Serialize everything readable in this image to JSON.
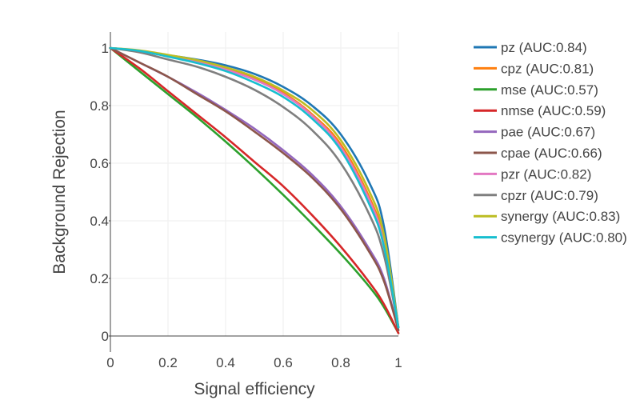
{
  "chart_data": {
    "type": "line",
    "xlabel": "Signal efficiency",
    "ylabel": "Background Rejection",
    "xlim": [
      0,
      1
    ],
    "ylim": [
      0,
      1
    ],
    "grid": true,
    "legend_position": "right",
    "xticks": [
      0,
      0.2,
      0.4,
      0.6,
      0.8,
      1
    ],
    "yticks": [
      0,
      0.2,
      0.4,
      0.6,
      0.8,
      1
    ],
    "xtick_labels": [
      "0",
      "0.2",
      "0.4",
      "0.6",
      "0.8",
      "1"
    ],
    "ytick_labels": [
      "0",
      "0.2",
      "0.4",
      "0.6",
      "0.8",
      "1"
    ],
    "x": [
      0,
      0.1,
      0.2,
      0.3,
      0.4,
      0.5,
      0.6,
      0.7,
      0.8,
      0.9,
      0.95,
      1
    ],
    "series": [
      {
        "name": "pz (AUC:0.84)",
        "color": "#1f77b4",
        "values": [
          1,
          0.99,
          0.975,
          0.96,
          0.94,
          0.91,
          0.865,
          0.8,
          0.7,
          0.53,
          0.38,
          0.03
        ]
      },
      {
        "name": "cpz (AUC:0.81)",
        "color": "#ff7f0e",
        "values": [
          1,
          0.99,
          0.972,
          0.955,
          0.93,
          0.895,
          0.845,
          0.77,
          0.665,
          0.48,
          0.33,
          0.03
        ]
      },
      {
        "name": "mse (AUC:0.57)",
        "color": "#2ca02c",
        "values": [
          1,
          0.92,
          0.84,
          0.76,
          0.675,
          0.585,
          0.49,
          0.39,
          0.285,
          0.17,
          0.1,
          0.01
        ]
      },
      {
        "name": "nmse (AUC:0.59)",
        "color": "#d62728",
        "values": [
          1,
          0.93,
          0.85,
          0.77,
          0.69,
          0.605,
          0.52,
          0.42,
          0.31,
          0.185,
          0.11,
          0.01
        ]
      },
      {
        "name": "pae (AUC:0.67)",
        "color": "#9467bd",
        "values": [
          1,
          0.95,
          0.9,
          0.845,
          0.785,
          0.72,
          0.645,
          0.56,
          0.45,
          0.3,
          0.2,
          0.02
        ]
      },
      {
        "name": "cpae (AUC:0.66)",
        "color": "#8c564b",
        "values": [
          1,
          0.95,
          0.9,
          0.84,
          0.78,
          0.71,
          0.635,
          0.55,
          0.44,
          0.29,
          0.19,
          0.02
        ]
      },
      {
        "name": "pzr (AUC:0.82)",
        "color": "#e377c2",
        "values": [
          1,
          0.99,
          0.972,
          0.952,
          0.925,
          0.89,
          0.84,
          0.765,
          0.655,
          0.47,
          0.32,
          0.03
        ]
      },
      {
        "name": "cpzr (AUC:0.79)",
        "color": "#7f7f7f",
        "values": [
          1,
          0.985,
          0.96,
          0.935,
          0.9,
          0.855,
          0.795,
          0.715,
          0.6,
          0.42,
          0.28,
          0.03
        ]
      },
      {
        "name": "synergy (AUC:0.83)",
        "color": "#bcbd22",
        "values": [
          1,
          0.992,
          0.976,
          0.958,
          0.933,
          0.9,
          0.852,
          0.785,
          0.68,
          0.5,
          0.35,
          0.03
        ]
      },
      {
        "name": "csynergy (AUC:0.80)",
        "color": "#17becf",
        "values": [
          1,
          0.99,
          0.97,
          0.948,
          0.92,
          0.88,
          0.83,
          0.755,
          0.645,
          0.455,
          0.31,
          0.03
        ]
      }
    ]
  }
}
